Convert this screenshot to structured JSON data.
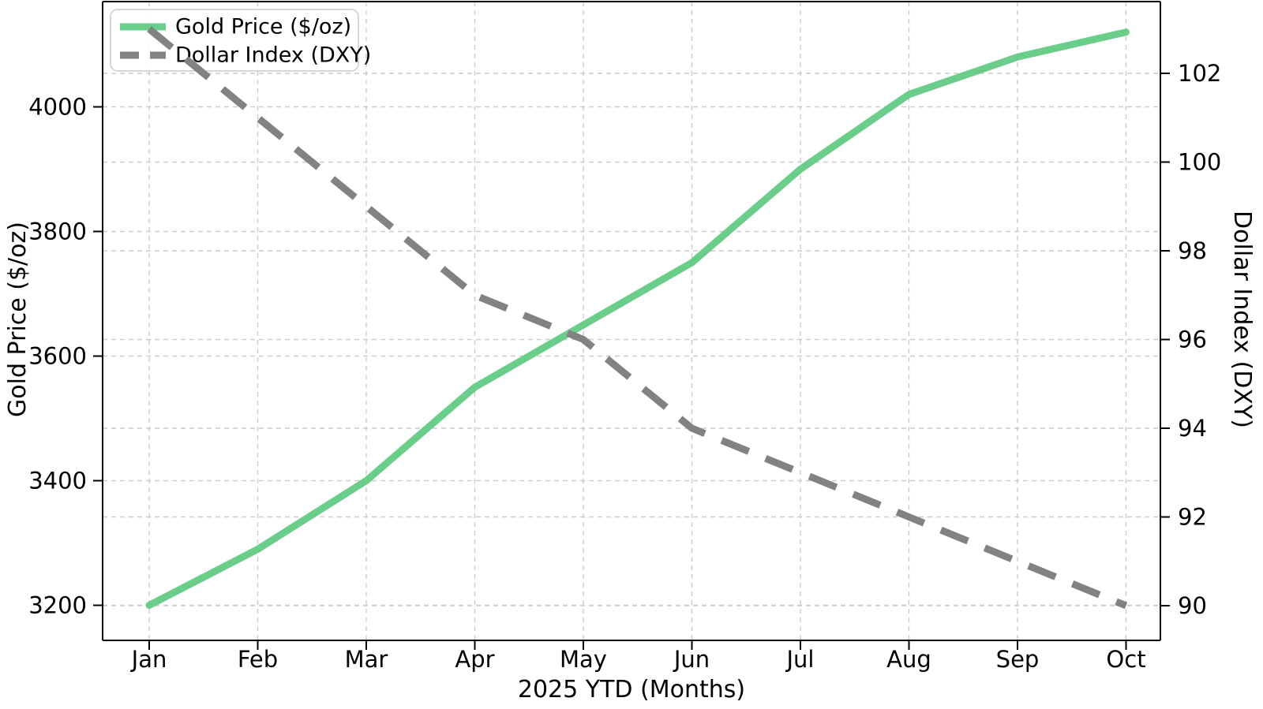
{
  "chart_data": {
    "type": "line",
    "title": "",
    "xlabel": "2025 YTD (Months)",
    "x": [
      "Jan",
      "Feb",
      "Mar",
      "Apr",
      "May",
      "Jun",
      "Jul",
      "Aug",
      "Sep",
      "Oct"
    ],
    "series": [
      {
        "name": "Gold Price ($/oz)",
        "axis": "left",
        "line_style": "solid",
        "color": "#6bcd8a",
        "values": [
          3200,
          3290,
          3400,
          3550,
          3650,
          3750,
          3900,
          4020,
          4080,
          4120
        ]
      },
      {
        "name": "Dollar Index (DXY)",
        "axis": "right",
        "line_style": "dashed",
        "color": "#828282",
        "values": [
          103,
          101,
          99,
          97,
          96,
          94,
          93,
          92,
          91,
          90
        ]
      }
    ],
    "left_axis": {
      "label": "Gold Price ($/oz)",
      "ticks": [
        3200,
        3400,
        3600,
        3800,
        4000
      ],
      "range": [
        3143,
        4171
      ]
    },
    "right_axis": {
      "label": "Dollar Index (DXY)",
      "ticks": [
        90,
        92,
        94,
        96,
        98,
        100,
        102
      ],
      "range": [
        89.2,
        103.7
      ]
    },
    "legend": {
      "position": "upper left",
      "entries": [
        "Gold Price ($/oz)",
        "Dollar Index (DXY)"
      ]
    },
    "grid": true,
    "colors": {
      "background": "#ffffff",
      "grid": "#cccccc",
      "axis": "#000000",
      "text": "#000000",
      "legend_border": "#cccccc",
      "legend_fill": "#ffffff"
    }
  }
}
